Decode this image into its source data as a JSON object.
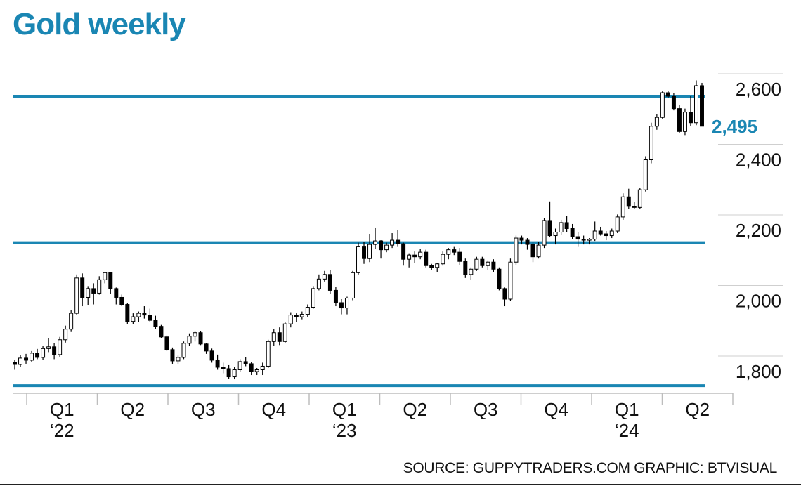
{
  "chart_data": {
    "type": "candlestick",
    "title": "Gold weekly",
    "source": "SOURCE: GUPPYTRADERS.COM   GRAPHIC: BTVISUAL",
    "ylim": [
      1760,
      2640
    ],
    "y_ticks": [
      {
        "value": 1800,
        "label": "1,800"
      },
      {
        "value": 2000,
        "label": "2,000"
      },
      {
        "value": 2200,
        "label": "2,200"
      },
      {
        "value": 2400,
        "label": "2,400"
      },
      {
        "value": 2600,
        "label": "2,600"
      }
    ],
    "last_value": {
      "value": 2495,
      "label": "2,495"
    },
    "x_quarters": [
      {
        "label": "Q1",
        "year": "‘22"
      },
      {
        "label": "Q2",
        "year": ""
      },
      {
        "label": "Q3",
        "year": ""
      },
      {
        "label": "Q4",
        "year": ""
      },
      {
        "label": "Q1",
        "year": "‘23"
      },
      {
        "label": "Q2",
        "year": ""
      },
      {
        "label": "Q3",
        "year": ""
      },
      {
        "label": "Q4",
        "year": ""
      },
      {
        "label": "Q1",
        "year": "‘24"
      },
      {
        "label": "Q2",
        "year": ""
      }
    ],
    "horizontal_levels": [
      2580,
      2165,
      1760
    ],
    "grid": false,
    "colors": {
      "accent": "#1a86b3",
      "up": "#ffffff",
      "down": "#000000",
      "text": "#111111"
    },
    "candles": [
      [
        1825,
        1832,
        1805,
        1820
      ],
      [
        1820,
        1846,
        1812,
        1838
      ],
      [
        1838,
        1850,
        1822,
        1832
      ],
      [
        1832,
        1858,
        1826,
        1852
      ],
      [
        1852,
        1864,
        1835,
        1840
      ],
      [
        1840,
        1872,
        1832,
        1865
      ],
      [
        1865,
        1895,
        1855,
        1870
      ],
      [
        1870,
        1880,
        1835,
        1848
      ],
      [
        1848,
        1898,
        1842,
        1890
      ],
      [
        1890,
        1930,
        1882,
        1920
      ],
      [
        1920,
        1975,
        1912,
        1965
      ],
      [
        1965,
        2075,
        1960,
        2065
      ],
      [
        2065,
        2078,
        1985,
        2010
      ],
      [
        2010,
        2042,
        1988,
        2035
      ],
      [
        2035,
        2050,
        1990,
        2022
      ],
      [
        2022,
        2070,
        2018,
        2060
      ],
      [
        2060,
        2082,
        2050,
        2080
      ],
      [
        2080,
        2082,
        2020,
        2035
      ],
      [
        2035,
        2038,
        1990,
        2010
      ],
      [
        2010,
        2018,
        1985,
        1990
      ],
      [
        1990,
        1995,
        1935,
        1942
      ],
      [
        1942,
        1965,
        1935,
        1955
      ],
      [
        1955,
        1970,
        1940,
        1965
      ],
      [
        1965,
        1985,
        1950,
        1960
      ],
      [
        1960,
        1978,
        1940,
        1945
      ],
      [
        1945,
        1958,
        1920,
        1928
      ],
      [
        1928,
        1932,
        1895,
        1898
      ],
      [
        1898,
        1902,
        1858,
        1862
      ],
      [
        1862,
        1868,
        1822,
        1830
      ],
      [
        1830,
        1845,
        1820,
        1840
      ],
      [
        1840,
        1885,
        1835,
        1880
      ],
      [
        1880,
        1908,
        1872,
        1900
      ],
      [
        1900,
        1915,
        1885,
        1910
      ],
      [
        1910,
        1915,
        1875,
        1878
      ],
      [
        1878,
        1880,
        1850,
        1858
      ],
      [
        1858,
        1865,
        1825,
        1832
      ],
      [
        1832,
        1848,
        1805,
        1812
      ],
      [
        1812,
        1825,
        1795,
        1808
      ],
      [
        1808,
        1818,
        1780,
        1785
      ],
      [
        1785,
        1812,
        1778,
        1805
      ],
      [
        1805,
        1835,
        1800,
        1828
      ],
      [
        1828,
        1840,
        1815,
        1822
      ],
      [
        1822,
        1826,
        1790,
        1800
      ],
      [
        1800,
        1810,
        1790,
        1805
      ],
      [
        1805,
        1825,
        1790,
        1815
      ],
      [
        1815,
        1890,
        1810,
        1885
      ],
      [
        1885,
        1920,
        1872,
        1910
      ],
      [
        1910,
        1925,
        1875,
        1885
      ],
      [
        1885,
        1940,
        1880,
        1935
      ],
      [
        1935,
        1968,
        1925,
        1960
      ],
      [
        1960,
        1965,
        1940,
        1955
      ],
      [
        1955,
        1970,
        1948,
        1962
      ],
      [
        1962,
        1990,
        1955,
        1982
      ],
      [
        1982,
        2042,
        1978,
        2035
      ],
      [
        2035,
        2075,
        2030,
        2062
      ],
      [
        2062,
        2085,
        2055,
        2075
      ],
      [
        2075,
        2088,
        2020,
        2030
      ],
      [
        2030,
        2040,
        1985,
        1995
      ],
      [
        1995,
        2005,
        1962,
        1980
      ],
      [
        1980,
        2012,
        1962,
        2008
      ],
      [
        2008,
        2085,
        2002,
        2080
      ],
      [
        2080,
        2165,
        2075,
        2155
      ],
      [
        2155,
        2168,
        2105,
        2120
      ],
      [
        2120,
        2190,
        2110,
        2160
      ],
      [
        2160,
        2208,
        2148,
        2170
      ],
      [
        2170,
        2172,
        2120,
        2145
      ],
      [
        2145,
        2165,
        2138,
        2158
      ],
      [
        2158,
        2192,
        2150,
        2172
      ],
      [
        2172,
        2200,
        2155,
        2162
      ],
      [
        2162,
        2165,
        2100,
        2118
      ],
      [
        2118,
        2135,
        2095,
        2130
      ],
      [
        2130,
        2140,
        2108,
        2125
      ],
      [
        2125,
        2148,
        2118,
        2138
      ],
      [
        2138,
        2145,
        2095,
        2100
      ],
      [
        2100,
        2105,
        2088,
        2095
      ],
      [
        2095,
        2108,
        2082,
        2105
      ],
      [
        2105,
        2140,
        2100,
        2132
      ],
      [
        2132,
        2150,
        2118,
        2145
      ],
      [
        2145,
        2155,
        2130,
        2138
      ],
      [
        2138,
        2150,
        2102,
        2112
      ],
      [
        2112,
        2120,
        2065,
        2075
      ],
      [
        2075,
        2095,
        2060,
        2090
      ],
      [
        2090,
        2125,
        2085,
        2118
      ],
      [
        2118,
        2125,
        2095,
        2100
      ],
      [
        2100,
        2115,
        2088,
        2110
      ],
      [
        2110,
        2118,
        2082,
        2090
      ],
      [
        2090,
        2095,
        2030,
        2035
      ],
      [
        2035,
        2038,
        1985,
        2005
      ],
      [
        2005,
        2120,
        2000,
        2110
      ],
      [
        2110,
        2185,
        2102,
        2178
      ],
      [
        2178,
        2185,
        2160,
        2172
      ],
      [
        2172,
        2178,
        2145,
        2160
      ],
      [
        2160,
        2168,
        2110,
        2125
      ],
      [
        2125,
        2168,
        2120,
        2158
      ],
      [
        2158,
        2235,
        2150,
        2228
      ],
      [
        2228,
        2282,
        2180,
        2185
      ],
      [
        2185,
        2205,
        2160,
        2195
      ],
      [
        2195,
        2230,
        2188,
        2222
      ],
      [
        2222,
        2240,
        2195,
        2205
      ],
      [
        2205,
        2218,
        2175,
        2182
      ],
      [
        2182,
        2195,
        2155,
        2175
      ],
      [
        2175,
        2185,
        2160,
        2172
      ],
      [
        2172,
        2178,
        2160,
        2175
      ],
      [
        2175,
        2225,
        2170,
        2198
      ],
      [
        2198,
        2210,
        2185,
        2190
      ],
      [
        2190,
        2198,
        2172,
        2185
      ],
      [
        2185,
        2205,
        2178,
        2198
      ],
      [
        2198,
        2245,
        2192,
        2238
      ],
      [
        2238,
        2305,
        2230,
        2295
      ],
      [
        2295,
        2318,
        2260,
        2268
      ],
      [
        2268,
        2280,
        2260,
        2265
      ],
      [
        2265,
        2320,
        2260,
        2315
      ],
      [
        2315,
        2410,
        2310,
        2400
      ],
      [
        2400,
        2505,
        2390,
        2495
      ],
      [
        2495,
        2530,
        2485,
        2520
      ],
      [
        2520,
        2595,
        2515,
        2590
      ],
      [
        2590,
        2595,
        2575,
        2580
      ],
      [
        2580,
        2590,
        2540,
        2545
      ],
      [
        2545,
        2555,
        2475,
        2480
      ],
      [
        2480,
        2545,
        2470,
        2535
      ],
      [
        2535,
        2580,
        2495,
        2505
      ],
      [
        2505,
        2625,
        2498,
        2610
      ],
      [
        2610,
        2618,
        2495,
        2495
      ]
    ]
  }
}
